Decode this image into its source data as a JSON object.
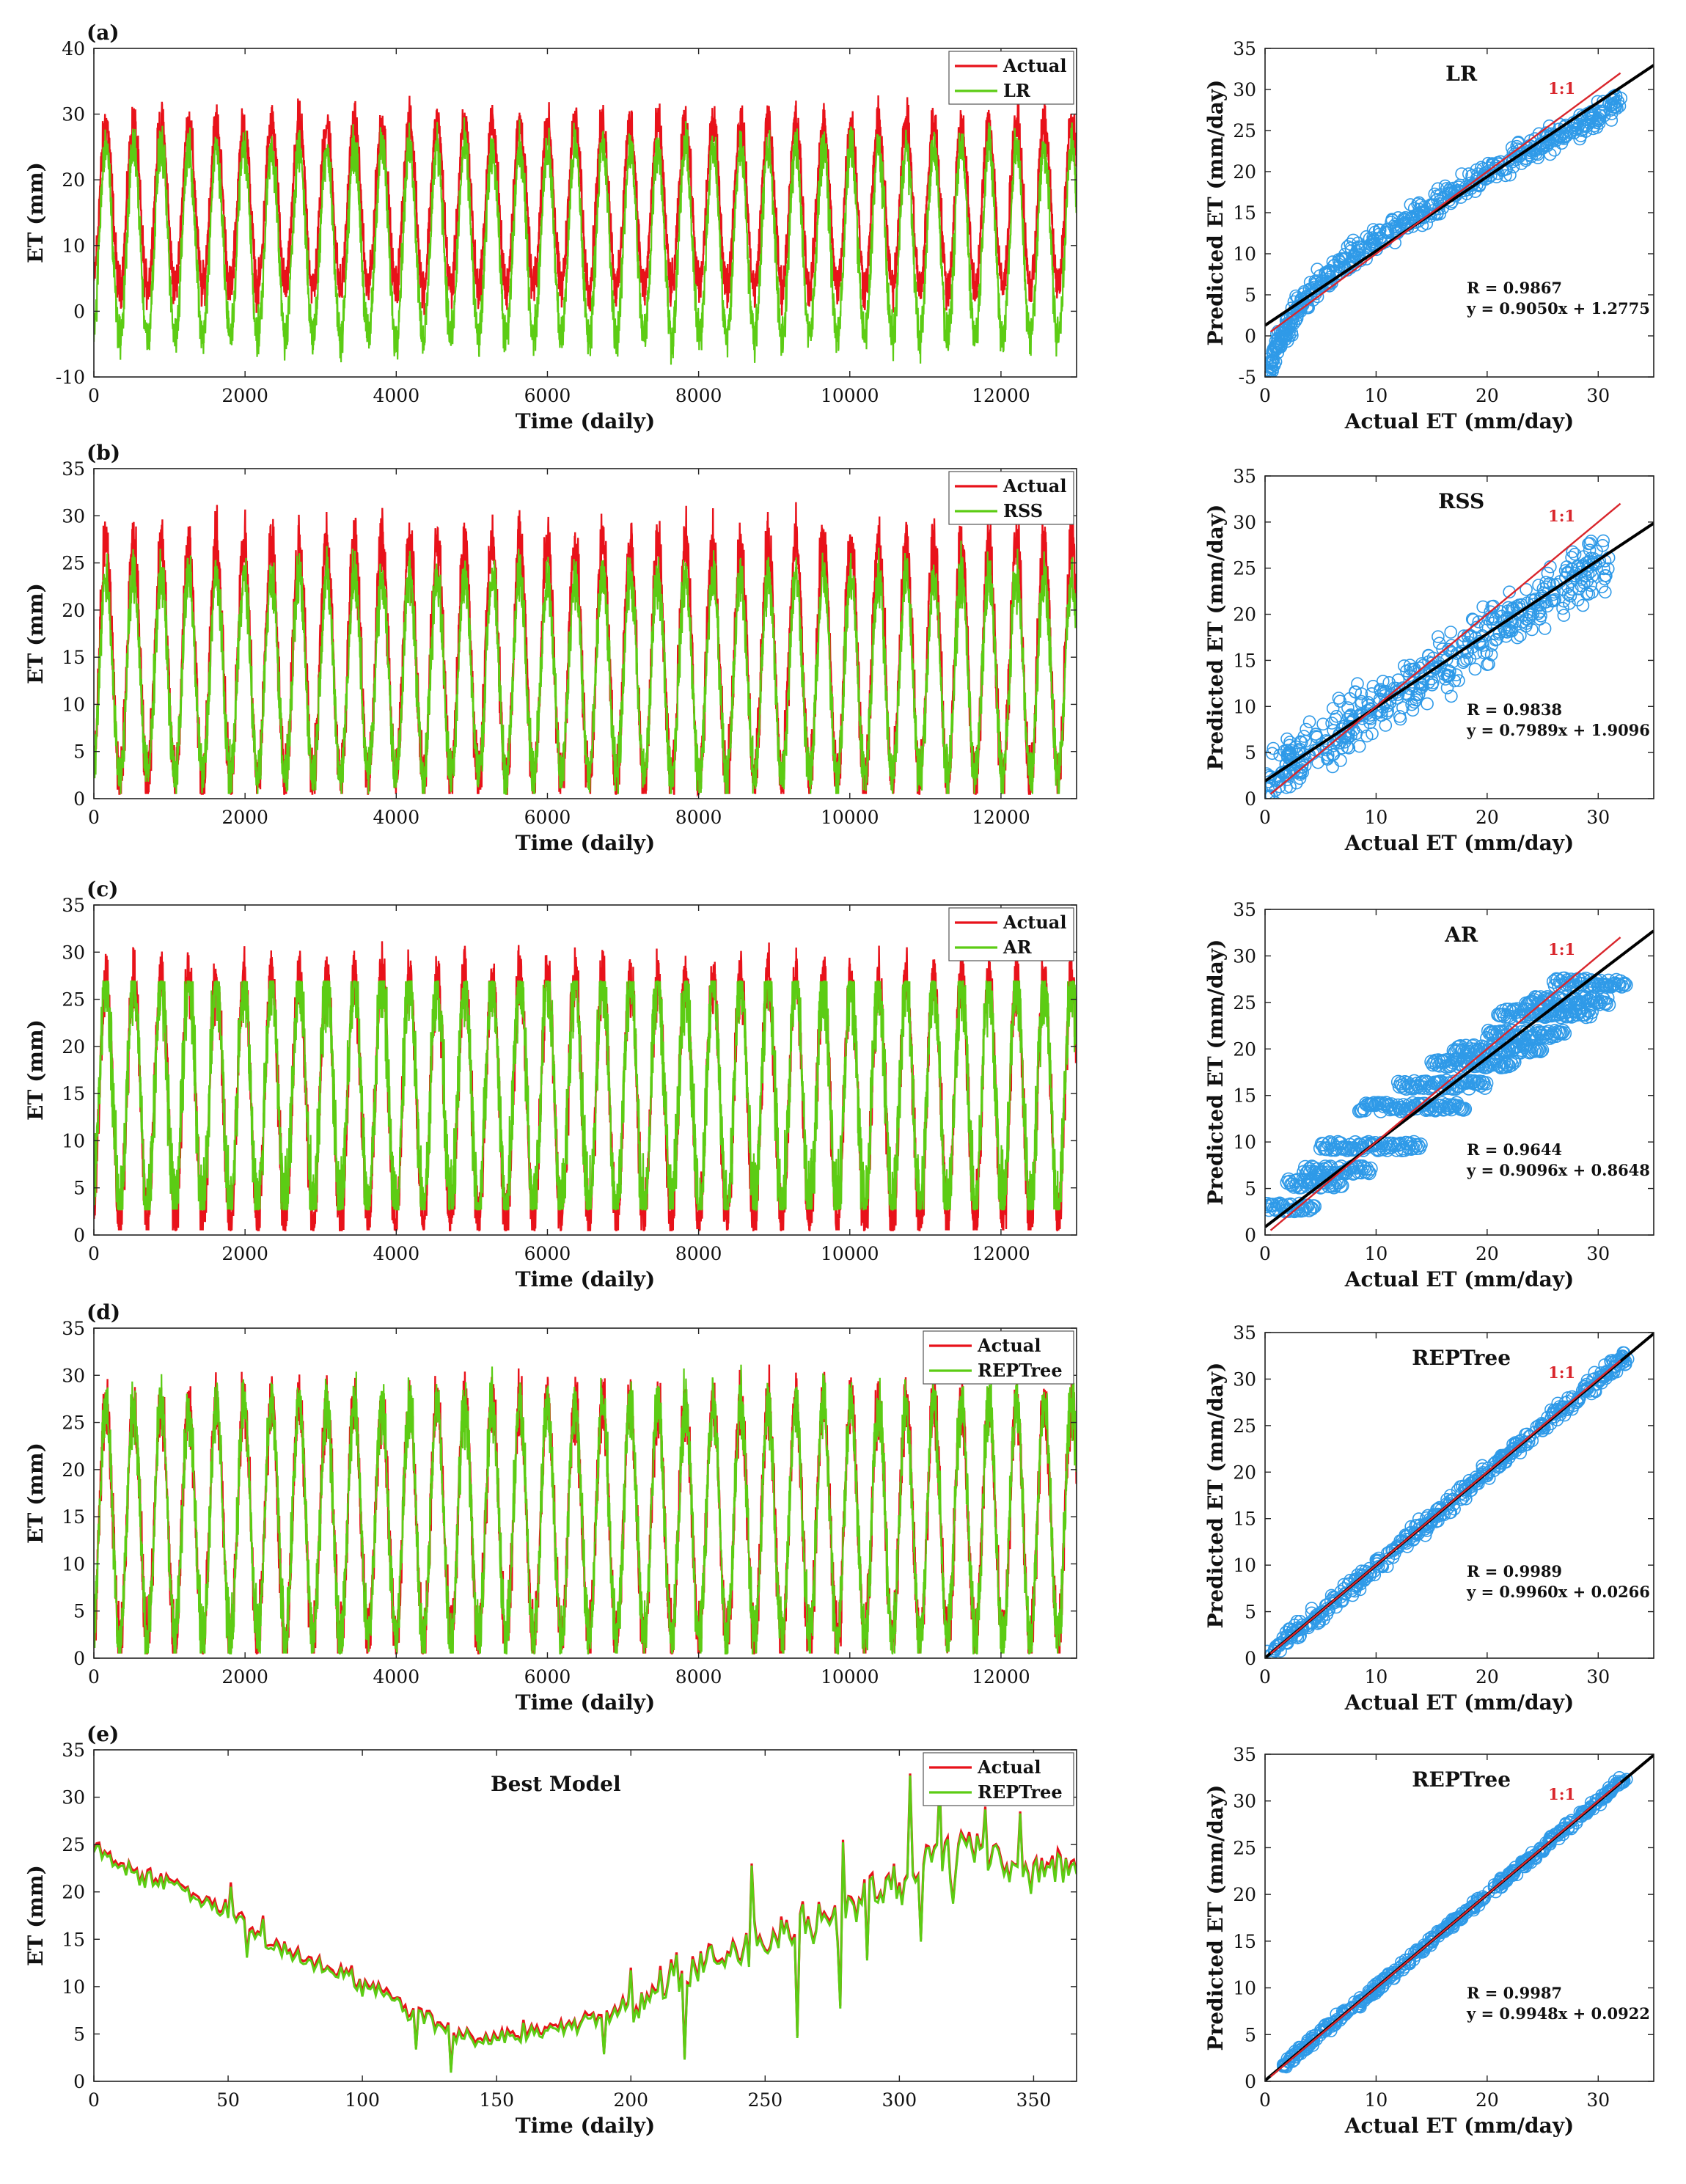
{
  "chart_data": [
    {
      "type": "line",
      "panel_label": "(a)",
      "title": "",
      "xlabel": "Time (daily)",
      "ylabel": "ET (mm)",
      "xlim": [
        0,
        13000
      ],
      "ylim": [
        -10,
        40
      ],
      "xticks": [
        "0",
        "2000",
        "4000",
        "6000",
        "8000",
        "10000",
        "12000"
      ],
      "yticks": [
        "-10",
        "0",
        "10",
        "20",
        "30",
        "40"
      ],
      "legend": [
        "Actual",
        "LR"
      ],
      "legend_position": "top-right",
      "series": [
        {
          "name": "Actual",
          "color": "#e8121a",
          "period_days": 365,
          "mean": 16,
          "amplitude": 12.5,
          "noise": 3
        },
        {
          "name": "LR",
          "color": "#5ccc14",
          "period_days": 365,
          "mean": 10.5,
          "amplitude": 14.5,
          "noise": 3
        }
      ]
    },
    {
      "type": "scatter",
      "title": "LR",
      "xlabel": "Actual ET (mm/day)",
      "ylabel": "Predicted ET (mm/day)",
      "xlim": [
        0,
        35
      ],
      "ylim": [
        -5,
        35
      ],
      "xticks": [
        "0",
        "10",
        "20",
        "30"
      ],
      "yticks": [
        "-5",
        "0",
        "5",
        "10",
        "15",
        "20",
        "25",
        "30",
        "35"
      ],
      "one_to_one_label": "1:1",
      "R_text": "R = 0.9867",
      "eq_text": "y = 0.9050x + 1.2775",
      "fit": {
        "slope": 0.905,
        "intercept": 1.2775
      },
      "point_color": "#2f9ae8",
      "cloud": [
        [
          0.3,
          -4.6
        ],
        [
          1,
          -1.5
        ],
        [
          2,
          1
        ],
        [
          3,
          3.5
        ],
        [
          5,
          6.5
        ],
        [
          8,
          10
        ],
        [
          12,
          13.5
        ],
        [
          16,
          16.5
        ],
        [
          20,
          19.5
        ],
        [
          25,
          23.5
        ],
        [
          29,
          26
        ],
        [
          32,
          28.5
        ]
      ],
      "cloud_spread": 1.3
    },
    {
      "type": "line",
      "panel_label": "(b)",
      "title": "",
      "xlabel": "Time (daily)",
      "ylabel": "ET (mm)",
      "xlim": [
        0,
        13000
      ],
      "ylim": [
        0,
        35
      ],
      "xticks": [
        "0",
        "2000",
        "4000",
        "6000",
        "8000",
        "10000",
        "12000"
      ],
      "yticks": [
        "0",
        "5",
        "10",
        "15",
        "20",
        "25",
        "30",
        "35"
      ],
      "legend": [
        "Actual",
        "RSS"
      ],
      "legend_position": "top-right",
      "series": [
        {
          "name": "Actual",
          "color": "#e8121a",
          "period_days": 365,
          "mean": 14.5,
          "amplitude": 12.5,
          "noise": 3
        },
        {
          "name": "RSS",
          "color": "#5ccc14",
          "period_days": 365,
          "mean": 13,
          "amplitude": 10.5,
          "noise": 2.5
        }
      ]
    },
    {
      "type": "scatter",
      "title": "RSS",
      "xlabel": "Actual ET (mm/day)",
      "ylabel": "Predicted ET (mm/day)",
      "xlim": [
        0,
        35
      ],
      "ylim": [
        0,
        35
      ],
      "xticks": [
        "0",
        "10",
        "20",
        "30"
      ],
      "yticks": [
        "0",
        "5",
        "10",
        "15",
        "20",
        "25",
        "30",
        "35"
      ],
      "one_to_one_label": "1:1",
      "R_text": "R = 0.9838",
      "eq_text": "y = 0.7989x + 1.9096",
      "fit": {
        "slope": 0.7989,
        "intercept": 1.9096
      },
      "point_color": "#2f9ae8",
      "cloud": [
        [
          0.3,
          1.5
        ],
        [
          2,
          3.5
        ],
        [
          5,
          6
        ],
        [
          8,
          8.5
        ],
        [
          12,
          11.5
        ],
        [
          16,
          14.5
        ],
        [
          20,
          18
        ],
        [
          24,
          21
        ],
        [
          28,
          24
        ],
        [
          31,
          26
        ]
      ],
      "cloud_spread": 2.6
    },
    {
      "type": "line",
      "panel_label": "(c)",
      "title": "",
      "xlabel": "Time (daily)",
      "ylabel": "ET (mm)",
      "xlim": [
        0,
        13000
      ],
      "ylim": [
        0,
        35
      ],
      "xticks": [
        "0",
        "2000",
        "4000",
        "6000",
        "8000",
        "10000",
        "12000"
      ],
      "yticks": [
        "0",
        "5",
        "10",
        "15",
        "20",
        "25",
        "30",
        "35"
      ],
      "legend": [
        "Actual",
        "AR"
      ],
      "legend_position": "top-right",
      "series": [
        {
          "name": "Actual",
          "color": "#e8121a",
          "period_days": 365,
          "mean": 14.5,
          "amplitude": 13,
          "noise": 3
        },
        {
          "name": "AR",
          "color": "#5ccc14",
          "period_days": 365,
          "mean": 15,
          "amplitude": 12,
          "noise": 4,
          "clip": [
            2.7,
            26.9
          ]
        }
      ]
    },
    {
      "type": "scatter",
      "title": "AR",
      "xlabel": "Actual ET (mm/day)",
      "ylabel": "Predicted ET (mm/day)",
      "xlim": [
        0,
        35
      ],
      "ylim": [
        0,
        35
      ],
      "xticks": [
        "0",
        "10",
        "20",
        "30"
      ],
      "yticks": [
        "0",
        "5",
        "10",
        "15",
        "20",
        "25",
        "30",
        "35"
      ],
      "one_to_one_label": "1:1",
      "R_text": "R = 0.9644",
      "eq_text": "y = 0.9096x + 0.8648",
      "fit": {
        "slope": 0.9096,
        "intercept": 0.8648
      },
      "point_color": "#2f9ae8",
      "steps": [
        [
          0,
          4.5,
          2.7
        ],
        [
          2,
          7,
          5.3
        ],
        [
          3.5,
          9.5,
          6.7
        ],
        [
          5,
          14,
          9.3
        ],
        [
          8.5,
          18,
          13.5
        ],
        [
          12,
          20,
          15.9
        ],
        [
          15,
          22.5,
          18.2
        ],
        [
          17,
          25,
          19.8
        ],
        [
          20,
          27,
          21.3
        ],
        [
          21,
          29.5,
          23.6
        ],
        [
          23.5,
          31,
          24.9
        ],
        [
          26,
          32.5,
          26.9
        ]
      ],
      "cloud_spread": 0
    },
    {
      "type": "line",
      "panel_label": "(d)",
      "title": "",
      "xlabel": "Time (daily)",
      "ylabel": "ET (mm)",
      "xlim": [
        0,
        13000
      ],
      "ylim": [
        0,
        35
      ],
      "xticks": [
        "0",
        "2000",
        "4000",
        "6000",
        "8000",
        "10000",
        "12000"
      ],
      "yticks": [
        "0",
        "5",
        "10",
        "15",
        "20",
        "25",
        "30",
        "35"
      ],
      "legend": [
        "Actual",
        "REPTree"
      ],
      "legend_position": "top-right",
      "series": [
        {
          "name": "Actual",
          "color": "#e8121a",
          "period_days": 365,
          "mean": 14.5,
          "amplitude": 12.5,
          "noise": 3
        },
        {
          "name": "REPTree",
          "color": "#5ccc14",
          "period_days": 365,
          "mean": 14.5,
          "amplitude": 12.4,
          "noise": 3
        }
      ]
    },
    {
      "type": "scatter",
      "title": "REPTree",
      "xlabel": "Actual ET (mm/day)",
      "ylabel": "Predicted ET (mm/day)",
      "xlim": [
        0,
        35
      ],
      "ylim": [
        0,
        35
      ],
      "xticks": [
        "0",
        "10",
        "20",
        "30"
      ],
      "yticks": [
        "0",
        "5",
        "10",
        "15",
        "20",
        "25",
        "30",
        "35"
      ],
      "one_to_one_label": "1:1",
      "R_text": "R = 0.9989",
      "eq_text": "y = 0.9960x + 0.0266",
      "fit": {
        "slope": 0.996,
        "intercept": 0.0266
      },
      "point_color": "#2f9ae8",
      "cloud": [
        [
          0.3,
          0.3
        ],
        [
          5,
          5
        ],
        [
          10,
          10
        ],
        [
          15,
          15
        ],
        [
          20,
          20
        ],
        [
          25,
          25
        ],
        [
          30,
          30
        ],
        [
          32.5,
          32.5
        ]
      ],
      "cloud_spread": 0.8
    },
    {
      "type": "line",
      "panel_label": "(e)",
      "title": "Best Model",
      "xlabel": "Time (daily)",
      "ylabel": "ET (mm)",
      "xlim": [
        0,
        366
      ],
      "ylim": [
        0,
        35
      ],
      "xticks": [
        "0",
        "50",
        "100",
        "150",
        "200",
        "250",
        "300",
        "350"
      ],
      "yticks": [
        "0",
        "5",
        "10",
        "15",
        "20",
        "25",
        "30",
        "35"
      ],
      "legend": [
        "Actual",
        "REPTree"
      ],
      "legend_position": "top-right",
      "series": [
        {
          "name": "Actual",
          "color": "#e8121a"
        },
        {
          "name": "REPTree",
          "color": "#5ccc14"
        }
      ],
      "trend_days": [
        0,
        10,
        20,
        30,
        40,
        50,
        60,
        70,
        80,
        90,
        100,
        110,
        120,
        130,
        140,
        150,
        160,
        170,
        180,
        190,
        200,
        210,
        220,
        230,
        240,
        250,
        260,
        270,
        280,
        290,
        300,
        310,
        320,
        330,
        340,
        350,
        360,
        366
      ],
      "trend_values": [
        25,
        23,
        21.5,
        21,
        19.5,
        18,
        16,
        14,
        13,
        12,
        10.5,
        9,
        7.5,
        6,
        4.8,
        4.8,
        5.2,
        5.5,
        6.5,
        7,
        8.5,
        10,
        11.5,
        12.5,
        14,
        15,
        16.5,
        17,
        18,
        19.5,
        21,
        23,
        24.5,
        25.5,
        23.5,
        22,
        23.5,
        23
      ],
      "spikes": [
        [
          51,
          21
        ],
        [
          57,
          13.5
        ],
        [
          63,
          17.5
        ],
        [
          120,
          3.5
        ],
        [
          133,
          1.2
        ],
        [
          160,
          6.5
        ],
        [
          190,
          3
        ],
        [
          200,
          12
        ],
        [
          220,
          2.5
        ],
        [
          225,
          11
        ],
        [
          245,
          23
        ],
        [
          262,
          4.8
        ],
        [
          264,
          19
        ],
        [
          278,
          8
        ],
        [
          279,
          25.5
        ],
        [
          288,
          13
        ],
        [
          290,
          22
        ],
        [
          300,
          21
        ],
        [
          304,
          32.5
        ],
        [
          308,
          15
        ],
        [
          315,
          31.5
        ],
        [
          320,
          19
        ],
        [
          332,
          29
        ],
        [
          345,
          28.5
        ]
      ]
    },
    {
      "type": "scatter",
      "title": "REPTree",
      "xlabel": "Actual ET (mm/day)",
      "ylabel": "Predicted ET (mm/day)",
      "xlim": [
        0,
        35
      ],
      "ylim": [
        0,
        35
      ],
      "xticks": [
        "0",
        "10",
        "20",
        "30"
      ],
      "yticks": [
        "0",
        "5",
        "10",
        "15",
        "20",
        "25",
        "30",
        "35"
      ],
      "one_to_one_label": "1:1",
      "R_text": "R = 0.9987",
      "eq_text": "y = 0.9948x + 0.0922",
      "fit": {
        "slope": 0.9948,
        "intercept": 0.0922
      },
      "point_color": "#2f9ae8",
      "cloud": [
        [
          1.5,
          1.5
        ],
        [
          5,
          5
        ],
        [
          10,
          10
        ],
        [
          15,
          15
        ],
        [
          20,
          20
        ],
        [
          25,
          25
        ],
        [
          29,
          29
        ],
        [
          32.5,
          32.5
        ]
      ],
      "cloud_spread": 0.4
    }
  ]
}
